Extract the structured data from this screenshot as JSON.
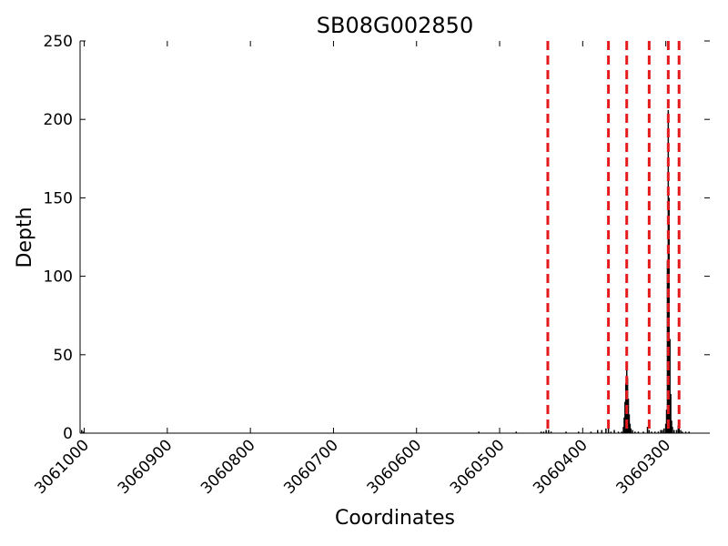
{
  "chart_data": {
    "type": "bar",
    "title": "SB08G002850",
    "xlabel": "Coordinates",
    "ylabel": "Depth",
    "x_axis_reversed": true,
    "xlim": [
      3061005,
      3060247
    ],
    "ylim": [
      0,
      250
    ],
    "x_ticks": [
      3061000,
      3060900,
      3060800,
      3060700,
      3060600,
      3060500,
      3060400,
      3060300
    ],
    "x_tick_labels": [
      "3061000",
      "3060900",
      "3060800",
      "3060700",
      "3060600",
      "3060500",
      "3060400",
      "3060300"
    ],
    "y_ticks": [
      0,
      50,
      100,
      150,
      200,
      250
    ],
    "y_tick_labels": [
      "0",
      "50",
      "100",
      "150",
      "200",
      "250"
    ],
    "grid": false,
    "bar_color": "#000000",
    "marker_color": "#e41a1c",
    "marker_style": "dashed",
    "vertical_markers": [
      3060442,
      3060369,
      3060347,
      3060320,
      3060297,
      3060284
    ],
    "depth": [
      [
        3061003,
        2
      ],
      [
        3061001,
        1
      ],
      [
        3060525,
        1
      ],
      [
        3060480,
        1
      ],
      [
        3060450,
        1
      ],
      [
        3060447,
        1
      ],
      [
        3060444,
        2
      ],
      [
        3060441,
        2
      ],
      [
        3060438,
        1
      ],
      [
        3060420,
        1
      ],
      [
        3060405,
        1
      ],
      [
        3060390,
        1
      ],
      [
        3060382,
        2
      ],
      [
        3060377,
        2
      ],
      [
        3060372,
        3
      ],
      [
        3060369,
        5
      ],
      [
        3060366,
        1
      ],
      [
        3060362,
        2
      ],
      [
        3060357,
        1
      ],
      [
        3060353,
        1
      ],
      [
        3060351,
        4
      ],
      [
        3060350,
        10
      ],
      [
        3060349,
        20
      ],
      [
        3060348,
        32
      ],
      [
        3060347,
        42
      ],
      [
        3060346,
        35
      ],
      [
        3060345,
        22
      ],
      [
        3060344,
        12
      ],
      [
        3060343,
        6
      ],
      [
        3060342,
        3
      ],
      [
        3060340,
        2
      ],
      [
        3060337,
        1
      ],
      [
        3060333,
        1
      ],
      [
        3060327,
        1
      ],
      [
        3060322,
        4
      ],
      [
        3060320,
        2
      ],
      [
        3060317,
        1
      ],
      [
        3060313,
        1
      ],
      [
        3060309,
        1
      ],
      [
        3060306,
        2
      ],
      [
        3060304,
        2
      ],
      [
        3060302,
        3
      ],
      [
        3060300,
        6
      ],
      [
        3060299,
        15
      ],
      [
        3060298,
        110
      ],
      [
        3060297,
        206
      ],
      [
        3060296,
        150
      ],
      [
        3060295,
        60
      ],
      [
        3060294,
        25
      ],
      [
        3060293,
        8
      ],
      [
        3060292,
        4
      ],
      [
        3060290,
        2
      ],
      [
        3060287,
        2
      ],
      [
        3060285,
        5
      ],
      [
        3060284,
        3
      ],
      [
        3060282,
        2
      ],
      [
        3060280,
        1
      ],
      [
        3060276,
        1
      ],
      [
        3060272,
        1
      ]
    ]
  }
}
